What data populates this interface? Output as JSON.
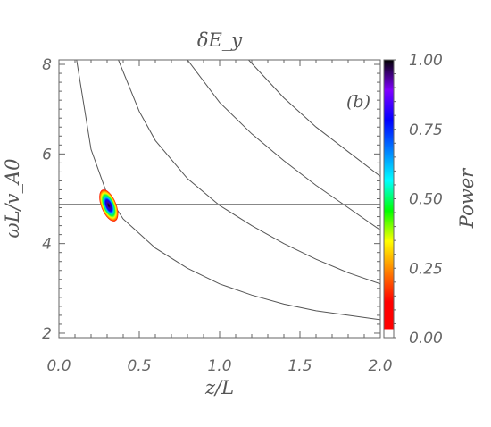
{
  "chart_data": {
    "type": "heatmap",
    "title": "δE_y",
    "panel_label": "(b)",
    "xlabel": "z/L",
    "ylabel": "ωL/v_A0",
    "xlim": [
      0.0,
      2.0
    ],
    "ylim": [
      1.9,
      8.1
    ],
    "x_ticks": [
      "0.0",
      "0.5",
      "1.0",
      "1.5",
      "2.0"
    ],
    "x_tick_values": [
      0.0,
      0.5,
      1.0,
      1.5,
      2.0
    ],
    "y_ticks": [
      "2",
      "4",
      "6",
      "8"
    ],
    "y_tick_values": [
      2,
      4,
      6,
      8
    ],
    "horizontal_line": 4.88,
    "curves": [
      {
        "x": [
          0.11,
          0.2,
          0.3,
          0.4,
          0.6,
          0.8,
          1.0,
          1.2,
          1.4,
          1.6,
          1.8,
          2.0
        ],
        "y": [
          8.1,
          6.1,
          5.1,
          4.55,
          3.9,
          3.45,
          3.1,
          2.85,
          2.65,
          2.5,
          2.4,
          2.3
        ]
      },
      {
        "x": [
          0.37,
          0.5,
          0.6,
          0.8,
          1.0,
          1.2,
          1.4,
          1.6,
          1.8,
          2.0
        ],
        "y": [
          8.1,
          6.95,
          6.3,
          5.45,
          4.85,
          4.4,
          4.0,
          3.65,
          3.35,
          3.1
        ]
      },
      {
        "x": [
          0.8,
          1.0,
          1.2,
          1.4,
          1.6,
          1.8,
          2.0
        ],
        "y": [
          8.1,
          7.15,
          6.45,
          5.85,
          5.3,
          4.8,
          4.3
        ]
      },
      {
        "x": [
          1.18,
          1.4,
          1.6,
          1.8,
          2.0
        ],
        "y": [
          8.1,
          7.25,
          6.6,
          6.05,
          5.5
        ]
      }
    ],
    "hotspot": {
      "x": 0.31,
      "y": 4.85,
      "peak": 1.0
    },
    "colorbar": {
      "label": "Power",
      "range": [
        0.0,
        1.0
      ],
      "ticks": [
        "0.00",
        "0.25",
        "0.50",
        "0.75",
        "1.00"
      ],
      "tick_values": [
        0.0,
        0.25,
        0.5,
        0.75,
        1.0
      ],
      "colormap": [
        "#ffffff",
        "#ff0000",
        "#ff8000",
        "#ffff00",
        "#00ff00",
        "#00ffff",
        "#0080ff",
        "#0000ff",
        "#8000ff",
        "#000000"
      ]
    },
    "grid": false
  }
}
